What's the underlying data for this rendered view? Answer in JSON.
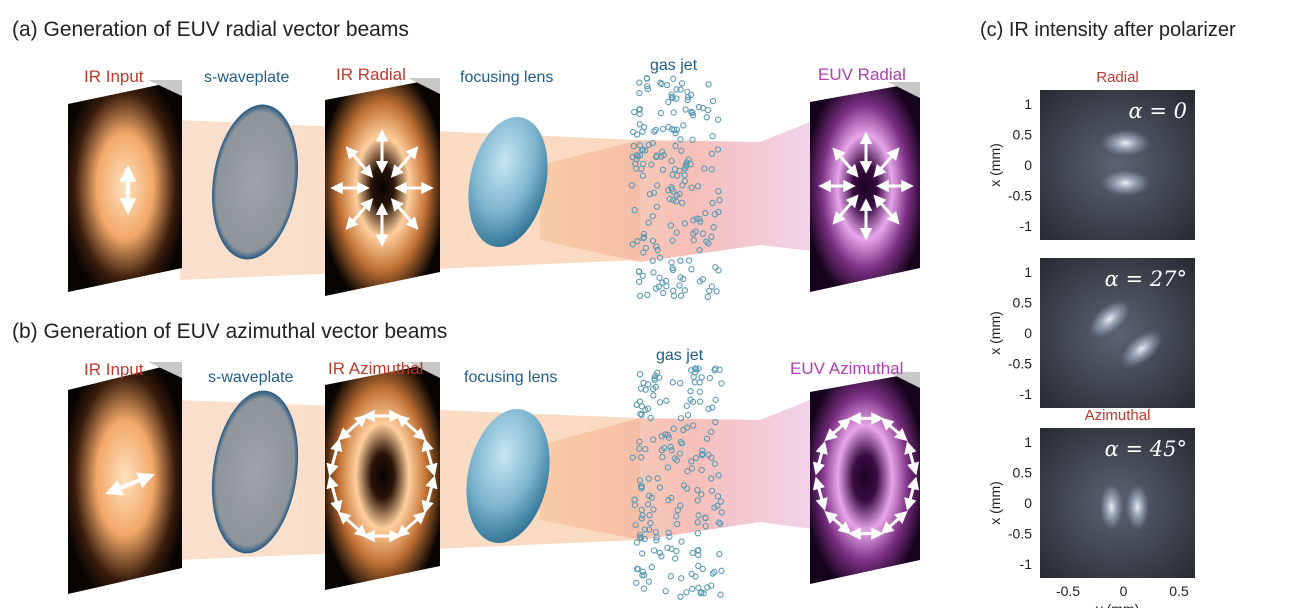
{
  "panel_a": {
    "title": "(a) Generation of EUV radial vector beams",
    "labels": {
      "ir_input": "IR Input",
      "waveplate": "s-waveplate",
      "ir_mode": "IR Radial",
      "lens": "focusing lens",
      "gas": "gas jet",
      "euv_mode": "EUV Radial"
    }
  },
  "panel_b": {
    "title": "(b) Generation of EUV azimuthal vector beams",
    "labels": {
      "ir_input": "IR Input",
      "waveplate": "s-waveplate",
      "ir_mode": "IR Azimuthal",
      "lens": "focusing lens",
      "gas": "gas jet",
      "euv_mode": "EUV Azimuthal"
    }
  },
  "panel_c": {
    "title": "(c) IR intensity after polarizer",
    "plots": [
      {
        "label": "Radial",
        "alpha": "α = 0",
        "pattern": "vertical-lobes"
      },
      {
        "label": "",
        "alpha": "α = 27°",
        "pattern": "diagonal-lobes"
      },
      {
        "label": "Azimuthal",
        "alpha": "α = 45°",
        "pattern": "horizontal-lobes"
      }
    ],
    "y_tick_labels": [
      "1",
      "0.5",
      "0",
      "-0.5",
      "-1"
    ],
    "x_tick_labels": [
      "-0.5",
      "0",
      "0.5"
    ],
    "ylabel": "x (mm)",
    "xlabel": "y (mm)"
  },
  "colors": {
    "label_red": "#c0392b",
    "label_blue": "#1f5c8c",
    "label_purple": "#b040b0",
    "ir_core": "#ffd7a8",
    "euv_core": "#d98cd9",
    "lens": "#7fb6d0",
    "bubble": "#5a9ab3"
  }
}
